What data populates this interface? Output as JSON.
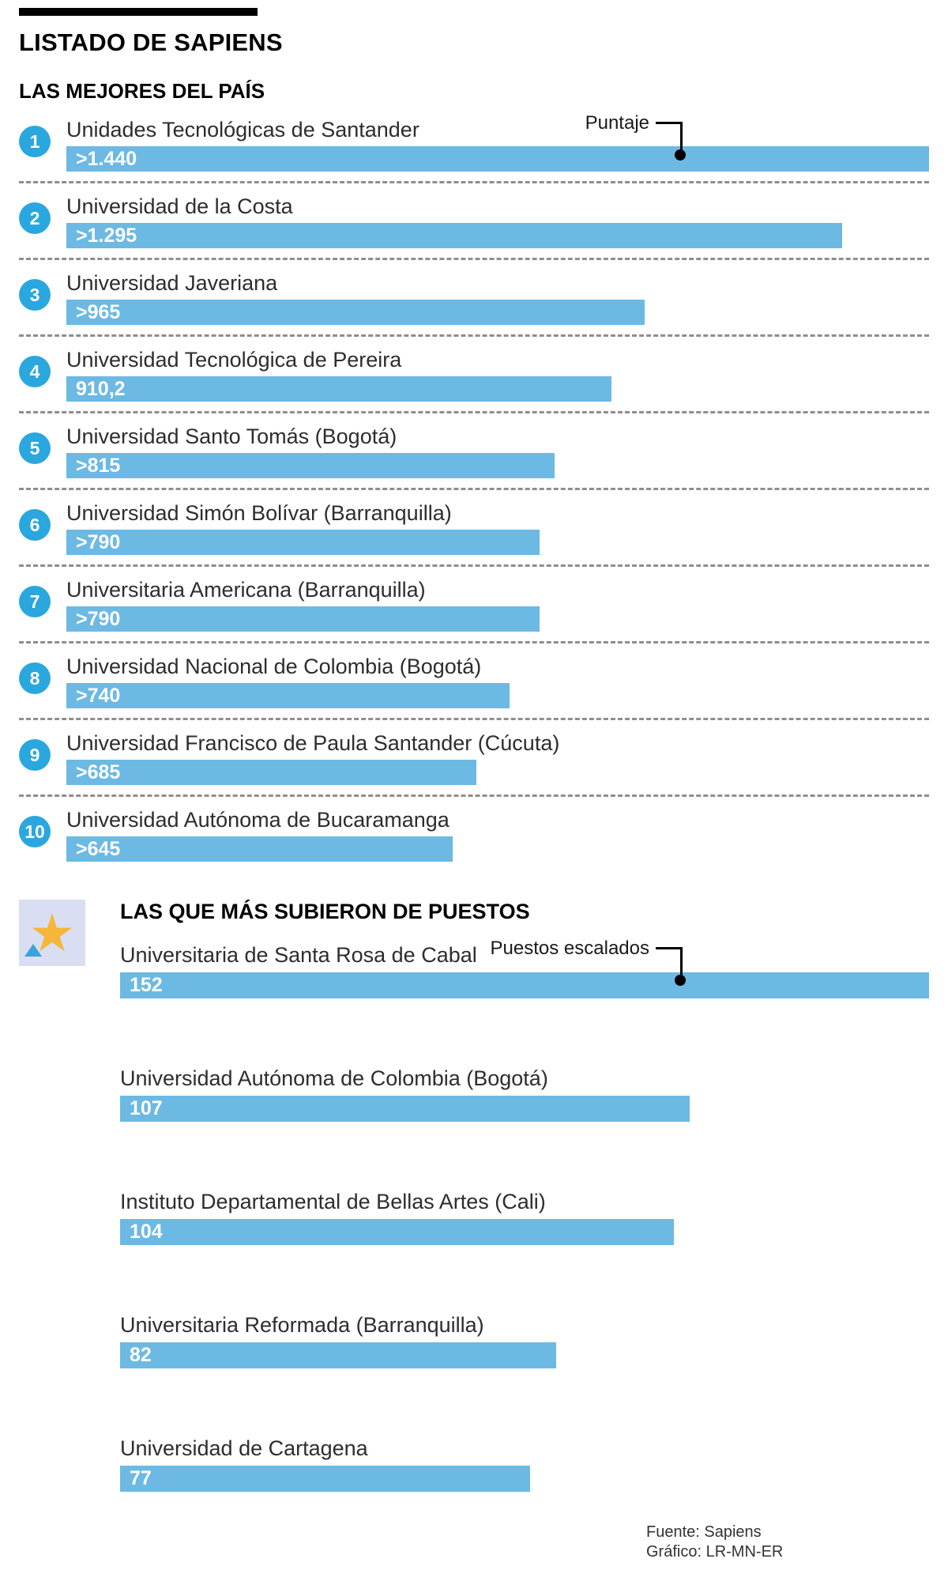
{
  "title": "LISTADO DE SAPIENS",
  "colors": {
    "bar": "#6cb9e4",
    "rank_circle": "#2aa7de",
    "star": "#f5b63a",
    "star_box": "#d9def2",
    "black": "#000000"
  },
  "best": {
    "subtitle": "LAS MEJORES DEL PAÍS",
    "callout": "Puntaje",
    "scale_max": 1440,
    "items": [
      {
        "rank": "1",
        "name": "Unidades Tecnológicas de Santander",
        "label": ">1.440",
        "value": 1440
      },
      {
        "rank": "2",
        "name": "Universidad de la Costa",
        "label": ">1.295",
        "value": 1295
      },
      {
        "rank": "3",
        "name": "Universidad Javeriana",
        "label": ">965",
        "value": 965
      },
      {
        "rank": "4",
        "name": "Universidad Tecnológica de Pereira",
        "label": "910,2",
        "value": 910.2
      },
      {
        "rank": "5",
        "name": "Universidad Santo Tomás (Bogotá)",
        "label": ">815",
        "value": 815
      },
      {
        "rank": "6",
        "name": "Universidad Simón Bolívar (Barranquilla)",
        "label": ">790",
        "value": 790
      },
      {
        "rank": "7",
        "name": "Universitaria Americana (Barranquilla)",
        "label": ">790",
        "value": 790
      },
      {
        "rank": "8",
        "name": "Universidad Nacional de Colombia (Bogotá)",
        "label": ">740",
        "value": 740
      },
      {
        "rank": "9",
        "name": "Universidad Francisco de Paula Santander (Cúcuta)",
        "label": ">685",
        "value": 685
      },
      {
        "rank": "10",
        "name": "Universidad Autónoma de Bucaramanga",
        "label": ">645",
        "value": 645
      }
    ]
  },
  "risers": {
    "title": "LAS QUE MÁS SUBIERON DE PUESTOS",
    "callout": "Puestos escalados",
    "scale_max": 152,
    "items": [
      {
        "name": "Universitaria de Santa Rosa de Cabal",
        "label": "152",
        "value": 152
      },
      {
        "name": "Universidad Autónoma de Colombia (Bogotá)",
        "label": "107",
        "value": 107
      },
      {
        "name": "Instituto Departamental de Bellas Artes (Cali)",
        "label": "104",
        "value": 104
      },
      {
        "name": "Universitaria Reformada (Barranquilla)",
        "label": "82",
        "value": 82
      },
      {
        "name": "Universidad de Cartagena",
        "label": "77",
        "value": 77
      }
    ]
  },
  "footer": {
    "source": "Fuente: Sapiens",
    "credit": "Gráfico: LR-MN-ER"
  },
  "chart_data": [
    {
      "type": "bar",
      "orientation": "horizontal",
      "title": "LAS MEJORES DEL PAÍS",
      "value_axis_label": "Puntaje",
      "categories": [
        "Unidades Tecnológicas de Santander",
        "Universidad de la Costa",
        "Universidad Javeriana",
        "Universidad Tecnológica de Pereira",
        "Universidad Santo Tomás (Bogotá)",
        "Universidad Simón Bolívar (Barranquilla)",
        "Universitaria Americana (Barranquilla)",
        "Universidad Nacional de Colombia (Bogotá)",
        "Universidad Francisco de Paula Santander (Cúcuta)",
        "Universidad Autónoma de Bucaramanga"
      ],
      "values": [
        1440,
        1295,
        965,
        910.2,
        815,
        790,
        790,
        740,
        685,
        645
      ],
      "value_labels": [
        ">1.440",
        ">1.295",
        ">965",
        "910,2",
        ">815",
        ">790",
        ">790",
        ">740",
        ">685",
        ">645"
      ],
      "xlim": [
        0,
        1440
      ],
      "grid": false,
      "legend": false
    },
    {
      "type": "bar",
      "orientation": "horizontal",
      "title": "LAS QUE MÁS SUBIERON DE PUESTOS",
      "value_axis_label": "Puestos escalados",
      "categories": [
        "Universitaria de Santa Rosa de Cabal",
        "Universidad Autónoma de Colombia (Bogotá)",
        "Instituto Departamental de Bellas Artes (Cali)",
        "Universitaria Reformada (Barranquilla)",
        "Universidad de Cartagena"
      ],
      "values": [
        152,
        107,
        104,
        82,
        77
      ],
      "value_labels": [
        "152",
        "107",
        "104",
        "82",
        "77"
      ],
      "xlim": [
        0,
        152
      ],
      "grid": false,
      "legend": false
    }
  ]
}
